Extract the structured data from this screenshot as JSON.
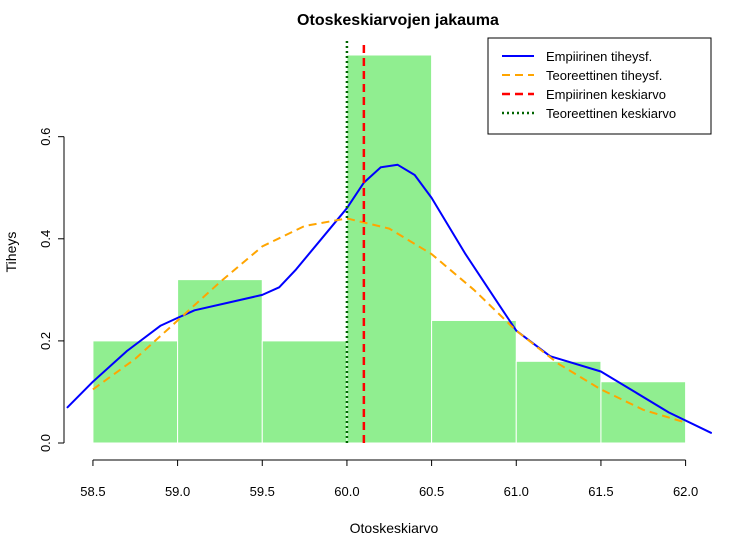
{
  "chart_data": {
    "type": "histogram",
    "title": "Otoskeskiarvojen jakauma",
    "xlabel": "Otoskeskiarvo",
    "ylabel": "Tiheys",
    "xlim": [
      58.4,
      62.15
    ],
    "ylim": [
      0,
      0.76
    ],
    "x_ticks": [
      "58.5",
      "59.0",
      "59.5",
      "60.0",
      "60.5",
      "61.0",
      "61.5",
      "62.0"
    ],
    "y_ticks": [
      "0.0",
      "0.2",
      "0.4",
      "0.6"
    ],
    "bins": [
      {
        "x0": 58.5,
        "x1": 59.0,
        "density": 0.2
      },
      {
        "x0": 59.0,
        "x1": 59.5,
        "density": 0.32
      },
      {
        "x0": 59.5,
        "x1": 60.0,
        "density": 0.2
      },
      {
        "x0": 60.0,
        "x1": 60.5,
        "density": 0.76
      },
      {
        "x0": 60.5,
        "x1": 61.0,
        "density": 0.24
      },
      {
        "x0": 61.0,
        "x1": 61.5,
        "density": 0.16
      },
      {
        "x0": 61.5,
        "x1": 62.0,
        "density": 0.12
      }
    ],
    "bar_color": "#90ee90",
    "series": [
      {
        "name": "Empiirinen tiheysf.",
        "type": "line",
        "style": "solid",
        "color": "#0000ff",
        "x": [
          58.35,
          58.5,
          58.7,
          58.9,
          59.0,
          59.1,
          59.3,
          59.5,
          59.6,
          59.7,
          59.85,
          60.0,
          60.1,
          60.2,
          60.3,
          60.4,
          60.5,
          60.7,
          60.9,
          61.0,
          61.2,
          61.5,
          61.7,
          61.9,
          62.15
        ],
        "y": [
          0.07,
          0.12,
          0.18,
          0.23,
          0.245,
          0.26,
          0.275,
          0.29,
          0.305,
          0.34,
          0.4,
          0.46,
          0.51,
          0.54,
          0.545,
          0.525,
          0.48,
          0.37,
          0.27,
          0.22,
          0.17,
          0.14,
          0.1,
          0.06,
          0.02
        ]
      },
      {
        "name": "Teoreettinen tiheysf.",
        "type": "line",
        "style": "dashed",
        "color": "#ffa500",
        "x": [
          58.5,
          58.75,
          59.0,
          59.25,
          59.5,
          59.75,
          60.0,
          60.25,
          60.5,
          60.75,
          61.0,
          61.25,
          61.5,
          61.75,
          62.0
        ],
        "y": [
          0.105,
          0.165,
          0.24,
          0.315,
          0.385,
          0.425,
          0.44,
          0.42,
          0.37,
          0.3,
          0.22,
          0.155,
          0.105,
          0.065,
          0.04
        ]
      },
      {
        "name": "Empiirinen keskiarvo",
        "type": "vline",
        "style": "dashed",
        "color": "#ff0000",
        "x": 60.1
      },
      {
        "name": "Teoreettinen keskiarvo",
        "type": "vline",
        "style": "dotted",
        "color": "#006400",
        "x": 60.0
      }
    ],
    "legend_position": "top-right"
  }
}
